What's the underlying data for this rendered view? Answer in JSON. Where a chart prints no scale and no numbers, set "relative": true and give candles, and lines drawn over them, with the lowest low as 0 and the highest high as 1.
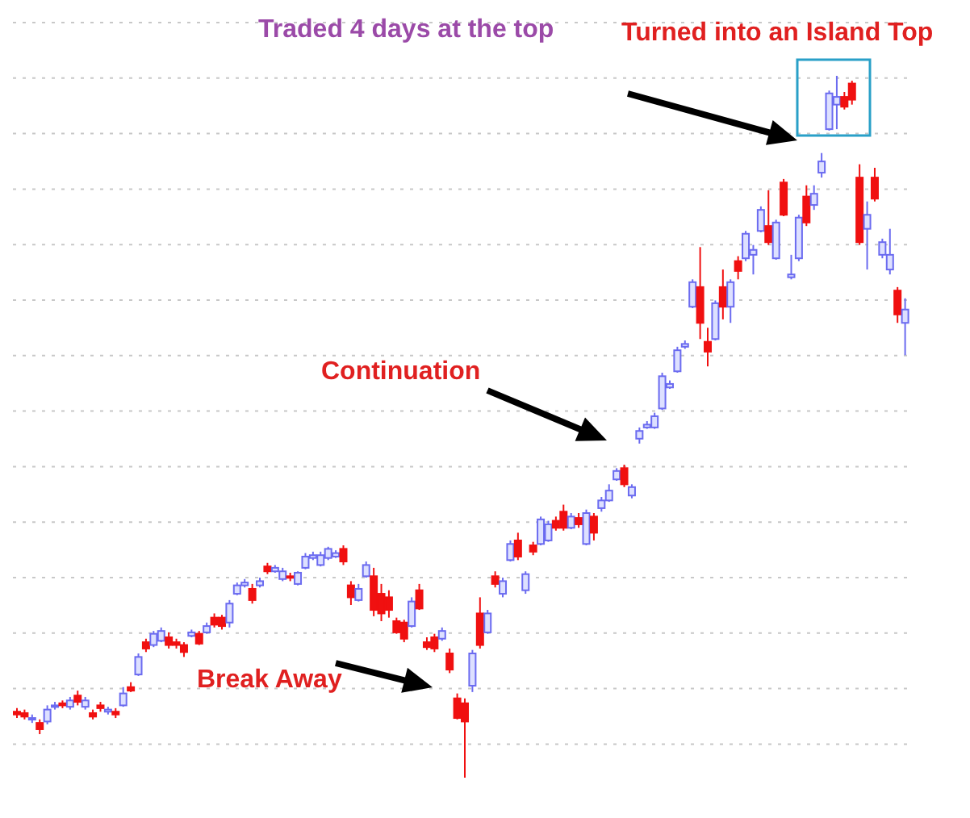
{
  "chart_data": {
    "type": "candlestick",
    "relative": true,
    "grid": "y",
    "annotations": [
      "Traded 4 days at the top",
      "Turned into an Island Top",
      "Continuation",
      "Break Away"
    ],
    "categories": [
      null,
      null,
      null,
      null,
      null,
      null,
      null,
      null,
      null,
      null,
      null,
      null,
      null,
      null,
      null,
      null,
      null,
      null,
      null,
      null,
      null,
      null,
      null,
      null,
      null,
      null,
      null,
      null,
      null,
      null,
      null,
      null,
      null,
      null,
      null,
      null,
      null,
      null,
      null,
      null,
      null,
      null,
      null,
      null,
      null,
      null,
      null,
      null,
      null,
      null,
      null,
      null,
      null,
      null,
      null,
      null,
      null,
      null,
      null,
      null,
      null,
      null,
      null,
      null,
      null,
      null,
      null,
      null,
      null,
      null,
      null,
      null,
      null,
      null,
      null,
      null,
      null,
      null,
      null,
      null,
      null,
      null,
      null,
      null,
      null,
      null,
      null,
      null,
      null,
      null,
      null,
      null,
      null,
      null,
      null,
      null,
      null,
      null,
      null,
      null,
      null,
      null,
      null,
      null,
      null,
      null,
      null,
      null,
      null,
      null,
      null,
      null,
      null,
      null,
      null,
      null,
      null,
      null
    ],
    "ohlc": [
      [
        0.094,
        0.099,
        0.085,
        0.09
      ],
      [
        0.092,
        0.097,
        0.083,
        0.087
      ],
      [
        0.083,
        0.09,
        0.078,
        0.085
      ],
      [
        0.078,
        0.083,
        0.062,
        0.069
      ],
      [
        0.08,
        0.103,
        0.076,
        0.097
      ],
      [
        0.101,
        0.108,
        0.097,
        0.103
      ],
      [
        0.106,
        0.11,
        0.099,
        0.103
      ],
      [
        0.101,
        0.115,
        0.097,
        0.11
      ],
      [
        0.117,
        0.124,
        0.103,
        0.108
      ],
      [
        0.101,
        0.115,
        0.097,
        0.11
      ],
      [
        0.092,
        0.097,
        0.083,
        0.087
      ],
      [
        0.103,
        0.108,
        0.094,
        0.099
      ],
      [
        0.094,
        0.101,
        0.09,
        0.097
      ],
      [
        0.094,
        0.099,
        0.085,
        0.09
      ],
      [
        0.103,
        0.129,
        0.101,
        0.12
      ],
      [
        0.129,
        0.136,
        0.122,
        0.124
      ],
      [
        0.147,
        0.177,
        0.145,
        0.172
      ],
      [
        0.193,
        0.198,
        0.179,
        0.184
      ],
      [
        0.189,
        0.209,
        0.186,
        0.205
      ],
      [
        0.195,
        0.214,
        0.193,
        0.209
      ],
      [
        0.2,
        0.207,
        0.184,
        0.189
      ],
      [
        0.193,
        0.198,
        0.184,
        0.189
      ],
      [
        0.189,
        0.193,
        0.172,
        0.179
      ],
      [
        0.202,
        0.211,
        0.2,
        0.207
      ],
      [
        0.205,
        0.209,
        0.189,
        0.191
      ],
      [
        0.207,
        0.221,
        0.205,
        0.216
      ],
      [
        0.228,
        0.234,
        0.214,
        0.218
      ],
      [
        0.228,
        0.232,
        0.211,
        0.216
      ],
      [
        0.221,
        0.253,
        0.214,
        0.248
      ],
      [
        0.262,
        0.278,
        0.26,
        0.274
      ],
      [
        0.274,
        0.283,
        0.271,
        0.278
      ],
      [
        0.269,
        0.276,
        0.248,
        0.253
      ],
      [
        0.274,
        0.285,
        0.271,
        0.28
      ],
      [
        0.301,
        0.306,
        0.29,
        0.294
      ],
      [
        0.294,
        0.303,
        0.292,
        0.299
      ],
      [
        0.283,
        0.299,
        0.28,
        0.294
      ],
      [
        0.287,
        0.292,
        0.28,
        0.285
      ],
      [
        0.276,
        0.294,
        0.274,
        0.292
      ],
      [
        0.299,
        0.32,
        0.297,
        0.315
      ],
      [
        0.313,
        0.322,
        0.31,
        0.317
      ],
      [
        0.303,
        0.322,
        0.301,
        0.317
      ],
      [
        0.313,
        0.329,
        0.31,
        0.326
      ],
      [
        0.315,
        0.324,
        0.313,
        0.32
      ],
      [
        0.326,
        0.331,
        0.303,
        0.308
      ],
      [
        0.274,
        0.28,
        0.246,
        0.257
      ],
      [
        0.253,
        0.276,
        0.251,
        0.269
      ],
      [
        0.287,
        0.308,
        0.285,
        0.303
      ],
      [
        0.287,
        0.299,
        0.23,
        0.239
      ],
      [
        0.262,
        0.276,
        0.223,
        0.234
      ],
      [
        0.257,
        0.267,
        0.228,
        0.239
      ],
      [
        0.223,
        0.228,
        0.205,
        0.207
      ],
      [
        0.221,
        0.225,
        0.193,
        0.198
      ],
      [
        0.216,
        0.257,
        0.214,
        0.251
      ],
      [
        0.267,
        0.276,
        0.239,
        0.241
      ],
      [
        0.193,
        0.2,
        0.182,
        0.186
      ],
      [
        0.2,
        0.205,
        0.179,
        0.184
      ],
      [
        0.198,
        0.214,
        0.195,
        0.209
      ],
      [
        0.177,
        0.184,
        0.149,
        0.154
      ],
      [
        0.113,
        0.12,
        0.083,
        0.085
      ],
      [
        0.106,
        0.113,
        0,
        0.08
      ],
      [
        0.131,
        0.182,
        0.122,
        0.177
      ],
      [
        0.234,
        0.257,
        0.184,
        0.189
      ],
      [
        0.207,
        0.239,
        0.205,
        0.234
      ],
      [
        0.287,
        0.294,
        0.271,
        0.276
      ],
      [
        0.262,
        0.285,
        0.257,
        0.28
      ],
      [
        0.31,
        0.338,
        0.308,
        0.333
      ],
      [
        0.338,
        0.349,
        0.31,
        0.315
      ],
      [
        0.267,
        0.294,
        0.262,
        0.29
      ],
      [
        0.331,
        0.336,
        0.317,
        0.322
      ],
      [
        0.333,
        0.372,
        0.331,
        0.368
      ],
      [
        0.338,
        0.366,
        0.336,
        0.361
      ],
      [
        0.366,
        0.372,
        0.352,
        0.356
      ],
      [
        0.379,
        0.389,
        0.352,
        0.356
      ],
      [
        0.356,
        0.377,
        0.354,
        0.372
      ],
      [
        0.37,
        0.377,
        0.356,
        0.361
      ],
      [
        0.333,
        0.382,
        0.331,
        0.377
      ],
      [
        0.372,
        0.377,
        0.338,
        0.349
      ],
      [
        0.384,
        0.4,
        0.379,
        0.395
      ],
      [
        0.395,
        0.418,
        0.393,
        0.409
      ],
      [
        0.425,
        0.441,
        0.423,
        0.437
      ],
      [
        0.441,
        0.446,
        0.414,
        0.418
      ],
      [
        0.402,
        0.418,
        0.398,
        0.414
      ],
      [
        0.483,
        0.499,
        0.476,
        0.494
      ],
      [
        0.499,
        0.508,
        0.497,
        0.503
      ],
      [
        0.499,
        0.52,
        0.497,
        0.515
      ],
      [
        0.526,
        0.577,
        0.524,
        0.572
      ],
      [
        0.556,
        0.566,
        0.554,
        0.561
      ],
      [
        0.579,
        0.614,
        0.577,
        0.609
      ],
      [
        0.614,
        0.623,
        0.611,
        0.618
      ],
      [
        0.671,
        0.71,
        0.669,
        0.706
      ],
      [
        0.699,
        0.756,
        0.625,
        0.648
      ],
      [
        0.621,
        0.641,
        0.586,
        0.607
      ],
      [
        0.625,
        0.68,
        0.623,
        0.676
      ],
      [
        0.699,
        0.724,
        0.653,
        0.671
      ],
      [
        0.671,
        0.71,
        0.648,
        0.706
      ],
      [
        0.736,
        0.743,
        0.71,
        0.722
      ],
      [
        0.74,
        0.779,
        0.736,
        0.775
      ],
      [
        0.745,
        0.759,
        0.717,
        0.752
      ],
      [
        0.779,
        0.814,
        0.777,
        0.809
      ],
      [
        0.786,
        0.837,
        0.759,
        0.763
      ],
      [
        0.74,
        0.795,
        0.738,
        0.791
      ],
      [
        0.848,
        0.853,
        0.8,
        0.802
      ],
      [
        0.713,
        0.745,
        0.71,
        0.717
      ],
      [
        0.74,
        0.802,
        0.736,
        0.798
      ],
      [
        0.828,
        0.844,
        0.786,
        0.791
      ],
      [
        0.816,
        0.844,
        0.809,
        0.832
      ],
      [
        0.862,
        0.89,
        0.855,
        0.878
      ],
      [
        0.924,
        0.979,
        0.922,
        0.975
      ],
      [
        0.959,
        1,
        0.924,
        0.97
      ],
      [
        0.97,
        0.977,
        0.952,
        0.956
      ],
      [
        0.989,
        0.993,
        0.959,
        0.966
      ],
      [
        0.855,
        0.874,
        0.759,
        0.763
      ],
      [
        0.782,
        0.821,
        0.724,
        0.802
      ],
      [
        0.855,
        0.869,
        0.821,
        0.825
      ],
      [
        0.745,
        0.768,
        0.74,
        0.763
      ],
      [
        0.724,
        0.782,
        0.717,
        0.745
      ],
      [
        0.694,
        0.699,
        0.648,
        0.66
      ],
      [
        0.648,
        0.683,
        0.602,
        0.667
      ]
    ]
  }
}
